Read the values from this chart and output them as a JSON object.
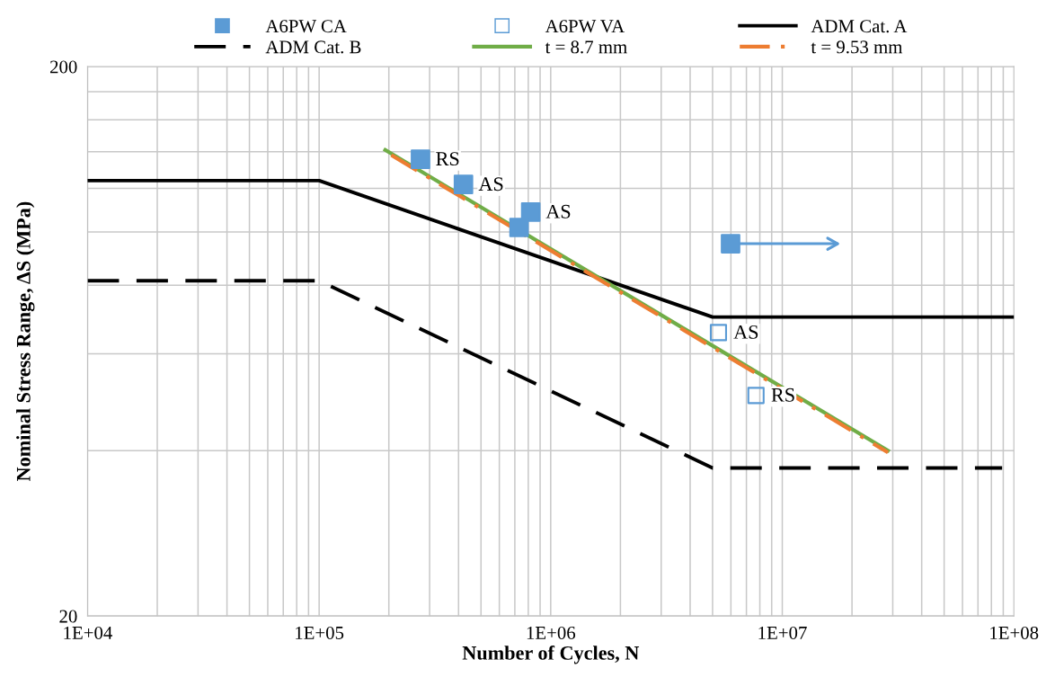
{
  "chart_data": {
    "type": "scatter",
    "xlabel": "Number of Cycles, N",
    "ylabel": "Nominal Stress Range, ΔS (MPa)",
    "log": "xy",
    "grid": true,
    "legend": "top",
    "xlim": [
      10000,
      100000000
    ],
    "xticks": [
      {
        "value": 10000,
        "label": "1E+04"
      },
      {
        "value": 100000,
        "label": "1E+05"
      },
      {
        "value": 1000000,
        "label": "1E+06"
      },
      {
        "value": 10000000,
        "label": "1E+07"
      },
      {
        "value": 100000000,
        "label": "1E+08"
      }
    ],
    "ylim": [
      20,
      200
    ],
    "yticks": [
      20,
      {
        "value": 40,
        "label": null
      },
      {
        "value": 60,
        "label": null
      },
      {
        "value": 80,
        "label": null
      },
      {
        "value": 100,
        "label": null
      },
      {
        "value": 120,
        "label": null
      },
      {
        "value": 140,
        "label": null
      },
      {
        "value": 160,
        "label": null
      },
      {
        "value": 180,
        "label": null
      },
      200
    ],
    "series": [
      {
        "name": "A6PW CA",
        "marker": "square",
        "color": "#5b9bd5",
        "x": [
          274000,
          420000,
          820000,
          730000,
          5980000
        ],
        "values": [
          135.6,
          122,
          108.7,
          101.9,
          95.2
        ]
      },
      {
        "name": "A6PW VA",
        "marker": "square",
        "color": "#5b9bd5",
        "x": [
          5300000,
          7700000
        ],
        "values": [
          65.6,
          50.4
        ]
      },
      {
        "name": "ADM Cat. A",
        "type": "line",
        "line_style": "solid",
        "color": "#000000",
        "x": [
          10000,
          100000,
          5000000,
          100000000
        ],
        "values": [
          124,
          124,
          70,
          70
        ]
      },
      {
        "name": "ADM Cat. B",
        "type": "line",
        "line_style": "dashed",
        "color": "#000000",
        "x": [
          10000,
          100000,
          5000000,
          89000000
        ],
        "values": [
          81.5,
          81.5,
          37.2,
          37.2
        ]
      },
      {
        "name": "t = 8.7 mm",
        "type": "line",
        "line_style": "solid",
        "color": "#70ad47",
        "x": [
          193000,
          28600000
        ],
        "values": [
          141,
          40
        ]
      },
      {
        "name": "t = 9.53 mm",
        "type": "line",
        "line_style": "dashdot",
        "color": "#ed7d31",
        "x": [
          205000,
          28600000
        ],
        "values": [
          138,
          39.7
        ]
      }
    ],
    "annotations": [
      {
        "text": "RS",
        "x": 274000,
        "y": 135.6
      },
      {
        "text": "AS",
        "x": 420000,
        "y": 122
      },
      {
        "text": "AS",
        "x": 820000,
        "y": 108.7
      },
      {
        "text": "AS",
        "x": 5300000,
        "y": 65.6
      },
      {
        "text": "RS",
        "x": 7700000,
        "y": 50.4
      }
    ]
  }
}
